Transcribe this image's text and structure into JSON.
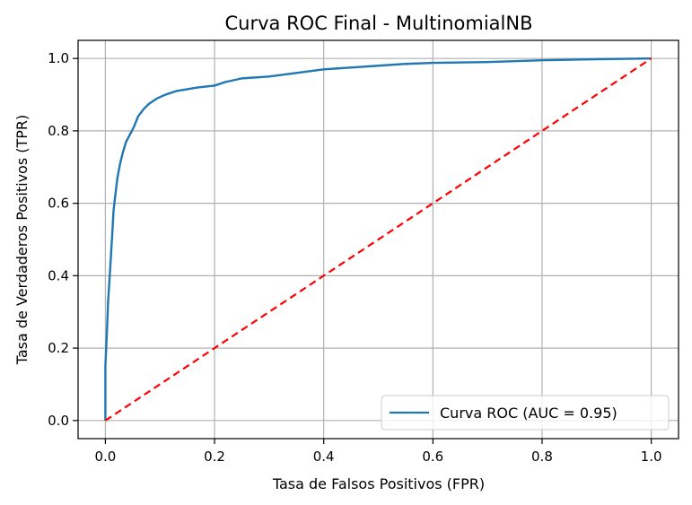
{
  "chart_data": {
    "type": "line",
    "title": "Curva ROC Final - MultinomialNB",
    "xlabel": "Tasa de Falsos Positivos (FPR)",
    "ylabel": "Tasa de Verdaderos Positivos (TPR)",
    "xlim": [
      -0.05,
      1.05
    ],
    "ylim": [
      -0.05,
      1.05
    ],
    "grid": true,
    "legend_position": "lower-right",
    "xticks": [
      0.0,
      0.2,
      0.4,
      0.6,
      0.8,
      1.0
    ],
    "xtick_labels": [
      "0.0",
      "0.2",
      "0.4",
      "0.6",
      "0.8",
      "1.0"
    ],
    "yticks": [
      0.0,
      0.2,
      0.4,
      0.6,
      0.8,
      1.0
    ],
    "ytick_labels": [
      "0.0",
      "0.2",
      "0.4",
      "0.6",
      "0.8",
      "1.0"
    ],
    "series": [
      {
        "name": "Curva ROC (AUC = 0.95)",
        "color": "#1f77b4",
        "style": "solid",
        "x": [
          0.0,
          0.0,
          0.003,
          0.005,
          0.008,
          0.012,
          0.015,
          0.018,
          0.022,
          0.027,
          0.032,
          0.038,
          0.045,
          0.052,
          0.06,
          0.07,
          0.08,
          0.095,
          0.11,
          0.13,
          0.15,
          0.17,
          0.2,
          0.22,
          0.25,
          0.3,
          0.35,
          0.4,
          0.45,
          0.5,
          0.55,
          0.6,
          0.7,
          0.8,
          0.9,
          1.0
        ],
        "y": [
          0.0,
          0.15,
          0.25,
          0.33,
          0.4,
          0.5,
          0.58,
          0.62,
          0.67,
          0.71,
          0.74,
          0.77,
          0.79,
          0.81,
          0.84,
          0.86,
          0.875,
          0.89,
          0.9,
          0.91,
          0.915,
          0.92,
          0.925,
          0.935,
          0.945,
          0.95,
          0.96,
          0.97,
          0.975,
          0.98,
          0.985,
          0.988,
          0.99,
          0.995,
          0.998,
          1.0
        ]
      },
      {
        "name": "",
        "color": "#ff0000",
        "style": "dashed",
        "x": [
          0.0,
          1.0
        ],
        "y": [
          0.0,
          1.0
        ]
      }
    ],
    "legend": [
      {
        "label": "Curva ROC (AUC = 0.95)",
        "color": "#1f77b4"
      }
    ]
  }
}
